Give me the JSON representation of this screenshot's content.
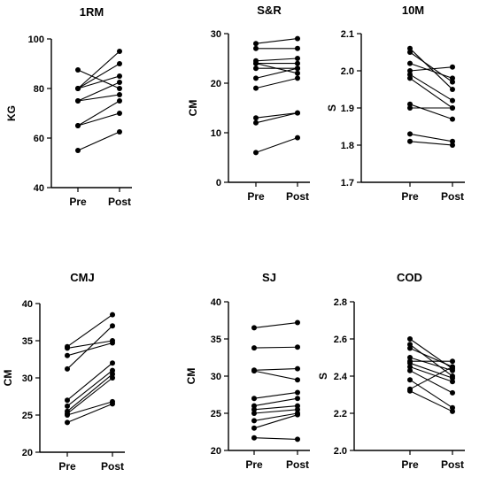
{
  "chart_data": [
    {
      "type": "line",
      "title": "1RM",
      "ylabel": "KG",
      "categories": [
        "Pre",
        "Post"
      ],
      "ylim": [
        40,
        100
      ],
      "yticks": [
        40,
        60,
        80,
        100
      ],
      "pairs": [
        [
          87.5,
          80
        ],
        [
          80,
          95
        ],
        [
          80,
          90
        ],
        [
          80,
          85
        ],
        [
          75,
          82.5
        ],
        [
          75,
          77.5
        ],
        [
          65,
          75
        ],
        [
          65,
          70
        ],
        [
          55,
          62.5
        ]
      ]
    },
    {
      "type": "line",
      "title": "S&R",
      "ylabel": "CM",
      "categories": [
        "Pre",
        "Post"
      ],
      "ylim": [
        0,
        30
      ],
      "yticks": [
        0,
        10,
        20,
        30
      ],
      "pairs": [
        [
          28,
          29
        ],
        [
          27,
          27
        ],
        [
          24.5,
          25
        ],
        [
          24,
          24
        ],
        [
          24,
          22
        ],
        [
          23,
          23
        ],
        [
          21,
          23
        ],
        [
          19,
          21
        ],
        [
          13,
          14
        ],
        [
          12,
          14
        ],
        [
          6,
          9
        ]
      ]
    },
    {
      "type": "line",
      "title": "10M",
      "ylabel": "S",
      "categories": [
        "Pre",
        "Post"
      ],
      "ylim": [
        1.7,
        2.1
      ],
      "yticks": [
        1.7,
        1.8,
        1.9,
        2.0,
        2.1
      ],
      "tick_labels": [
        "1.7",
        "1.8",
        "1.9",
        "2.0",
        "2.1"
      ],
      "pairs": [
        [
          2.06,
          1.95
        ],
        [
          2.05,
          1.97
        ],
        [
          2.02,
          1.98
        ],
        [
          2.0,
          2.01
        ],
        [
          1.99,
          1.92
        ],
        [
          1.98,
          1.9
        ],
        [
          1.91,
          1.87
        ],
        [
          1.9,
          1.9
        ],
        [
          1.83,
          1.81
        ],
        [
          1.81,
          1.8
        ]
      ]
    },
    {
      "type": "line",
      "title": "CMJ",
      "ylabel": "CM",
      "categories": [
        "Pre",
        "Post"
      ],
      "ylim": [
        20,
        40
      ],
      "yticks": [
        20,
        25,
        30,
        35,
        40
      ],
      "pairs": [
        [
          34.2,
          38.5
        ],
        [
          34,
          35
        ],
        [
          33,
          34.7
        ],
        [
          31.2,
          37
        ],
        [
          27,
          32
        ],
        [
          26.2,
          31
        ],
        [
          25.5,
          30.5
        ],
        [
          25.2,
          30
        ],
        [
          25,
          26.8
        ],
        [
          24,
          26.5
        ]
      ]
    },
    {
      "type": "line",
      "title": "SJ",
      "ylabel": "CM",
      "categories": [
        "Pre",
        "Post"
      ],
      "ylim": [
        20,
        40
      ],
      "yticks": [
        20,
        25,
        30,
        35,
        40
      ],
      "pairs": [
        [
          36.5,
          37.2
        ],
        [
          33.8,
          33.9
        ],
        [
          30.8,
          31
        ],
        [
          30.7,
          29.5
        ],
        [
          27,
          27.8
        ],
        [
          26,
          27
        ],
        [
          25.5,
          26
        ],
        [
          25,
          25.5
        ],
        [
          24,
          25
        ],
        [
          23,
          24.8
        ],
        [
          21.7,
          21.5
        ]
      ]
    },
    {
      "type": "line",
      "title": "COD",
      "ylabel": "S",
      "categories": [
        "Pre",
        "Post"
      ],
      "ylim": [
        2.0,
        2.8
      ],
      "yticks": [
        2.0,
        2.2,
        2.4,
        2.6,
        2.8
      ],
      "tick_labels": [
        "2.0",
        "2.2",
        "2.4",
        "2.6",
        "2.8"
      ],
      "pairs": [
        [
          2.6,
          2.44
        ],
        [
          2.57,
          2.4
        ],
        [
          2.55,
          2.45
        ],
        [
          2.5,
          2.43
        ],
        [
          2.48,
          2.48
        ],
        [
          2.47,
          2.39
        ],
        [
          2.45,
          2.37
        ],
        [
          2.43,
          2.31
        ],
        [
          2.38,
          2.23
        ],
        [
          2.33,
          2.45
        ],
        [
          2.32,
          2.21
        ]
      ]
    }
  ]
}
